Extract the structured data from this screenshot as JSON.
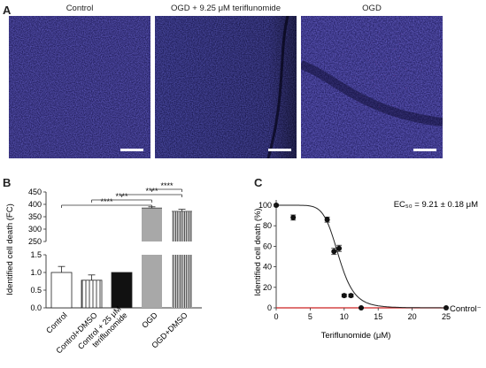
{
  "panel_a": {
    "letter": "A",
    "images": [
      {
        "label": "Control",
        "has_red": false
      },
      {
        "label": "OGD + 9.25 μM teriflunomide",
        "has_red": false
      },
      {
        "label": "OGD",
        "has_red": true
      }
    ]
  },
  "chart_data": [
    {
      "panel": "B",
      "type": "bar",
      "ylabel": "Identified cell death (FC)",
      "broken_axis": true,
      "ylim_lower": [
        0,
        1.5
      ],
      "ylim_upper": [
        250,
        450
      ],
      "yticks_lower": [
        "0.0",
        "0.5",
        "1.0",
        "1.5"
      ],
      "yticks_upper": [
        "250",
        "300",
        "350",
        "400",
        "450"
      ],
      "categories": [
        "Control",
        "Control+DMSO",
        "Control + 25 μM teriflunomide",
        "OGD",
        "OGD+DMSO"
      ],
      "category_lines": [
        [
          "Control"
        ],
        [
          "Control+DMSO"
        ],
        [
          "Control + 25 μM",
          "teriflunomide"
        ],
        [
          "OGD"
        ],
        [
          "OGD+DMSO"
        ]
      ],
      "values": [
        1.0,
        0.78,
        1.0,
        385,
        372
      ],
      "errors": [
        0.17,
        0.15,
        0.0,
        5,
        8
      ],
      "fills": [
        "white",
        "vertical-lines",
        "black",
        "gray",
        "dense-vertical-lines"
      ],
      "significance": [
        {
          "from": 0,
          "to": 3,
          "label": "****"
        },
        {
          "from": 1,
          "to": 3,
          "label": "****"
        },
        {
          "from": 2,
          "to": 4,
          "label": "****"
        },
        {
          "from": 3,
          "to": 4,
          "label": "****"
        }
      ]
    },
    {
      "panel": "C",
      "type": "scatter",
      "xlabel": "Teriflunomide (μM)",
      "ylabel": "Identified cell death (%)",
      "xlim": [
        0,
        25
      ],
      "ylim": [
        0,
        100
      ],
      "xticks": [
        "0",
        "5",
        "10",
        "15",
        "20",
        "25"
      ],
      "yticks": [
        "0",
        "20",
        "40",
        "60",
        "80",
        "100"
      ],
      "ec50_label": "EC₅₀ = 9.21 ± 0.18 μM",
      "control_label": "Control⁻",
      "fit": {
        "ec50": 9.21,
        "hill": 8,
        "top": 100,
        "bottom": 0
      },
      "points": [
        {
          "x": 0,
          "y": 100,
          "err": 1
        },
        {
          "x": 2.5,
          "y": 88,
          "err": 2.5
        },
        {
          "x": 7.5,
          "y": 86,
          "err": 2.5
        },
        {
          "x": 8.5,
          "y": 55,
          "err": 3
        },
        {
          "x": 9.25,
          "y": 58,
          "err": 3
        },
        {
          "x": 10,
          "y": 12,
          "err": 1.5
        },
        {
          "x": 11,
          "y": 12,
          "err": 1.5
        },
        {
          "x": 12.5,
          "y": 0,
          "err": 0.5
        },
        {
          "x": 25,
          "y": 0,
          "err": 0
        }
      ],
      "control_line_color": "#cc2222"
    }
  ]
}
